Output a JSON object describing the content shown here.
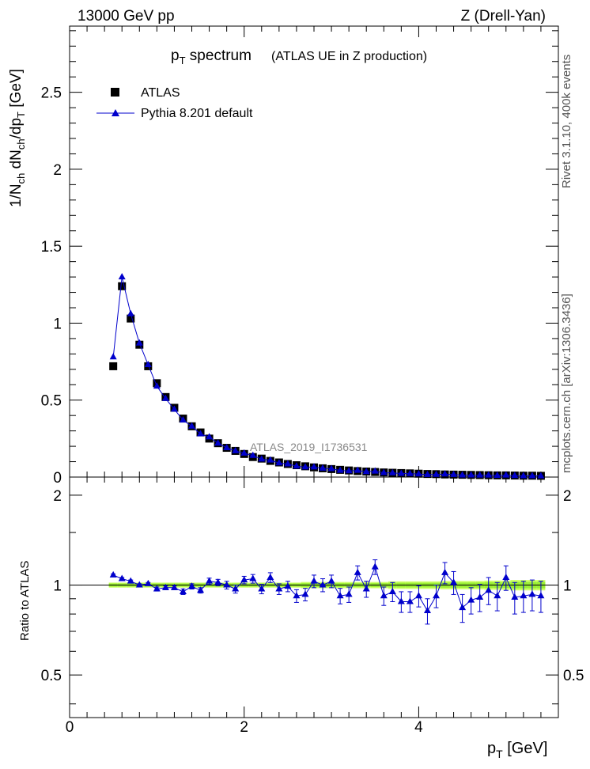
{
  "header": {
    "left": "13000 GeV pp",
    "right": "Z (Drell-Yan)"
  },
  "title": {
    "main": "p",
    "main_sub": "T",
    "main_rest": " spectrum",
    "detail": "(ATLAS UE in Z production)"
  },
  "side": {
    "rivet": "Rivet 3.1.10,  400k events",
    "mcplots": "mcplots.cern.ch [arXiv:1306.3436]"
  },
  "watermark": "ATLAS_2019_I1736531",
  "legend": {
    "data": "ATLAS",
    "mc": "Pythia 8.201 default"
  },
  "axes": {
    "x_label": "p",
    "x_label_sub": "T",
    "x_label_unit": " [GeV]",
    "ratio_label": "Ratio to ATLAS",
    "x_ticks": [
      "0",
      "2",
      "4"
    ],
    "y_ticks": [
      "0",
      "0.5",
      "1",
      "1.5",
      "2",
      "2.5"
    ],
    "r_ticks": [
      "0.5",
      "1",
      "2"
    ]
  },
  "colors": {
    "data": "#000000",
    "mc": "#0000cc",
    "band_outer": "#ccff66",
    "band_inner": "#99ee33"
  },
  "chart_data": {
    "type": "scatter",
    "xlim": [
      0,
      5.6
    ],
    "ylim": [
      0,
      2.93
    ],
    "ratio_ylim": [
      0.36,
      2.3
    ],
    "x": [
      0.5,
      0.6,
      0.7,
      0.8,
      0.9,
      1.0,
      1.1,
      1.2,
      1.3,
      1.4,
      1.5,
      1.6,
      1.7,
      1.8,
      1.9,
      2.0,
      2.1,
      2.2,
      2.3,
      2.4,
      2.5,
      2.6,
      2.7,
      2.8,
      2.9,
      3.0,
      3.1,
      3.2,
      3.3,
      3.4,
      3.5,
      3.6,
      3.7,
      3.8,
      3.9,
      4.0,
      4.1,
      4.2,
      4.3,
      4.4,
      4.5,
      4.6,
      4.7,
      4.8,
      4.9,
      5.0,
      5.1,
      5.2,
      5.3,
      5.4
    ],
    "series": [
      {
        "name": "ATLAS",
        "values": [
          0.72,
          1.24,
          1.03,
          0.86,
          0.72,
          0.61,
          0.52,
          0.45,
          0.38,
          0.33,
          0.29,
          0.25,
          0.22,
          0.19,
          0.17,
          0.15,
          0.13,
          0.12,
          0.105,
          0.095,
          0.085,
          0.077,
          0.07,
          0.063,
          0.057,
          0.052,
          0.047,
          0.043,
          0.039,
          0.036,
          0.033,
          0.03,
          0.028,
          0.026,
          0.024,
          0.022,
          0.02,
          0.019,
          0.017,
          0.016,
          0.015,
          0.014,
          0.013,
          0.012,
          0.011,
          0.011,
          0.01,
          0.009,
          0.009,
          0.008
        ]
      },
      {
        "name": "Pythia 8.201 default",
        "values": [
          0.78,
          1.3,
          1.06,
          0.87,
          0.73,
          0.59,
          0.51,
          0.44,
          0.37,
          0.33,
          0.28,
          0.26,
          0.22,
          0.19,
          0.17,
          0.155,
          0.14,
          0.116,
          0.11,
          0.091,
          0.085,
          0.071,
          0.065,
          0.065,
          0.057,
          0.054,
          0.043,
          0.04,
          0.043,
          0.035,
          0.038,
          0.028,
          0.027,
          0.023,
          0.022,
          0.02,
          0.016,
          0.017,
          0.019,
          0.016,
          0.013,
          0.013,
          0.012,
          0.012,
          0.01,
          0.012,
          0.009,
          0.008,
          0.008,
          0.007
        ]
      }
    ],
    "ratio": {
      "values": [
        1.08,
        1.05,
        1.03,
        1.0,
        1.01,
        0.97,
        0.98,
        0.98,
        0.95,
        0.99,
        0.96,
        1.03,
        1.02,
        1.0,
        0.97,
        1.04,
        1.05,
        0.97,
        1.06,
        0.97,
        0.99,
        0.92,
        0.93,
        1.03,
        1.0,
        1.03,
        0.92,
        0.93,
        1.1,
        0.97,
        1.15,
        0.92,
        0.95,
        0.88,
        0.88,
        0.92,
        0.82,
        0.92,
        1.1,
        1.02,
        0.84,
        0.89,
        0.91,
        0.96,
        0.92,
        1.06,
        0.91,
        0.92,
        0.93,
        0.92
      ],
      "errors": [
        0.01,
        0.01,
        0.01,
        0.01,
        0.01,
        0.015,
        0.015,
        0.015,
        0.02,
        0.02,
        0.02,
        0.025,
        0.025,
        0.03,
        0.03,
        0.03,
        0.035,
        0.035,
        0.04,
        0.04,
        0.04,
        0.045,
        0.045,
        0.05,
        0.05,
        0.05,
        0.055,
        0.055,
        0.06,
        0.06,
        0.065,
        0.065,
        0.07,
        0.07,
        0.07,
        0.075,
        0.08,
        0.08,
        0.09,
        0.09,
        0.09,
        0.09,
        0.095,
        0.1,
        0.1,
        0.1,
        0.11,
        0.11,
        0.11,
        0.11
      ],
      "band": [
        0.012,
        0.012,
        0.012,
        0.012,
        0.012,
        0.012,
        0.012,
        0.012,
        0.012,
        0.012,
        0.012,
        0.012,
        0.012,
        0.012,
        0.012,
        0.012,
        0.012,
        0.012,
        0.012,
        0.012,
        0.012,
        0.012,
        0.015,
        0.015,
        0.015,
        0.015,
        0.015,
        0.015,
        0.015,
        0.015,
        0.015,
        0.015,
        0.018,
        0.018,
        0.018,
        0.018,
        0.018,
        0.018,
        0.02,
        0.02,
        0.02,
        0.02,
        0.02,
        0.022,
        0.022,
        0.022,
        0.025,
        0.025,
        0.025,
        0.025
      ]
    }
  }
}
